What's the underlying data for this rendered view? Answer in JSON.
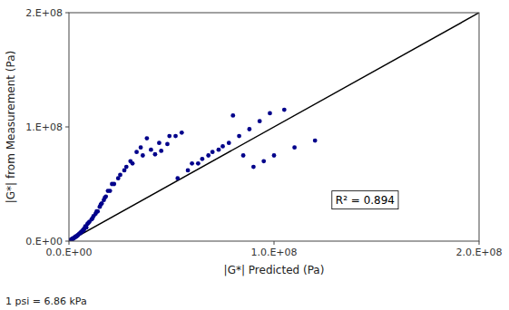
{
  "chart_data": {
    "type": "scatter",
    "xlabel": "|G*| Predicted (Pa)",
    "ylabel": "|G*| from Measurement (Pa)",
    "annotation": "R² = 0.894",
    "footnote": "1 psi = 6.86 kPa",
    "grid": false,
    "xlim": [
      0,
      200000000
    ],
    "ylim": [
      0,
      200000000
    ],
    "xticks": [
      {
        "value": 0,
        "label": "0.0.E+00"
      },
      {
        "value": 100000000,
        "label": "1.0.E+08"
      },
      {
        "value": 200000000,
        "label": "2.0.E+08"
      }
    ],
    "yticks": [
      {
        "value": 0,
        "label": "0.E+00"
      },
      {
        "value": 100000000,
        "label": "1.E+08"
      },
      {
        "value": 200000000,
        "label": "2.E+08"
      }
    ],
    "series": [
      {
        "type": "scatter",
        "color": "#00008B",
        "x": [
          500000,
          800000,
          1200000,
          1500000,
          2000000,
          2500000,
          3000000,
          3500000,
          4000000,
          4500000,
          5000000,
          5500000,
          6000000,
          6500000,
          7000000,
          7500000,
          8000000,
          9000000,
          10000000,
          11000000,
          12000000,
          13000000,
          14000000,
          15000000,
          16000000,
          17000000,
          18000000,
          20000000,
          22000000,
          25000000,
          28000000,
          30000000,
          33000000,
          35000000,
          38000000,
          42000000,
          45000000,
          48000000,
          52000000,
          55000000,
          60000000,
          65000000,
          70000000,
          75000000,
          80000000,
          85000000,
          90000000,
          95000000,
          100000000,
          110000000,
          120000000,
          1000000,
          1800000,
          2300000,
          3200000,
          4200000,
          5800000,
          7200000,
          8500000,
          9500000,
          11500000,
          13500000,
          15500000,
          17500000,
          19000000,
          21000000,
          24000000,
          27000000,
          31000000,
          36000000,
          40000000,
          44000000,
          49000000,
          53000000,
          58000000,
          63000000,
          68000000,
          73000000,
          78000000,
          83000000,
          88000000,
          93000000,
          98000000,
          105000000
        ],
        "values": [
          600000,
          900000,
          1100000,
          1800000,
          2200000,
          2800000,
          3200000,
          4000000,
          4500000,
          5500000,
          6500000,
          7000000,
          8000000,
          9000000,
          10000000,
          11000000,
          13000000,
          15000000,
          17000000,
          19000000,
          22000000,
          24000000,
          26000000,
          30000000,
          33000000,
          36000000,
          39000000,
          44000000,
          50000000,
          58000000,
          65000000,
          70000000,
          78000000,
          82000000,
          90000000,
          76000000,
          79000000,
          85000000,
          92000000,
          95000000,
          68000000,
          72000000,
          78000000,
          83000000,
          110000000,
          75000000,
          65000000,
          70000000,
          75000000,
          82000000,
          88000000,
          1200000,
          2000000,
          2700000,
          4000000,
          5000000,
          7500000,
          9500000,
          12000000,
          16000000,
          20000000,
          26000000,
          32000000,
          38000000,
          44000000,
          50000000,
          55000000,
          62000000,
          68000000,
          75000000,
          80000000,
          86000000,
          92000000,
          55000000,
          62000000,
          68000000,
          75000000,
          80000000,
          86000000,
          92000000,
          98000000,
          105000000,
          112000000,
          115000000
        ]
      },
      {
        "type": "line",
        "color": "#000000",
        "x": [
          0,
          200000000
        ],
        "values": [
          0,
          200000000
        ]
      }
    ]
  }
}
